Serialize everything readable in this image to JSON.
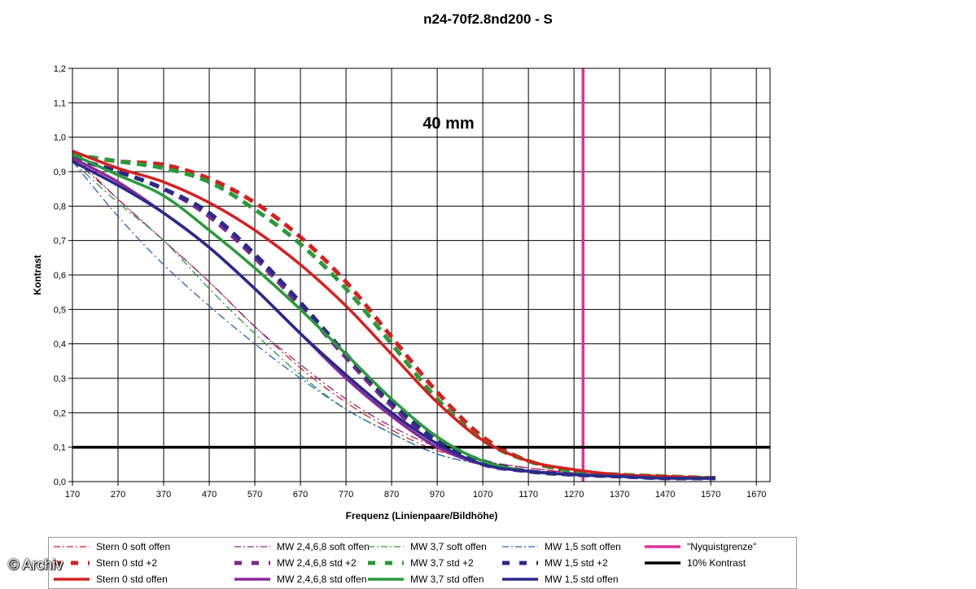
{
  "chart_data": {
    "type": "line",
    "title": "n24-70f2.8nd200 - S",
    "annotation": "40 mm",
    "xlabel": "Frequenz (Linienpaare/Bildhöhe)",
    "ylabel": "Kontrast",
    "xlim": [
      170,
      1700
    ],
    "ylim": [
      0,
      1.2
    ],
    "x_ticks": [
      "170",
      "270",
      "370",
      "470",
      "570",
      "670",
      "770",
      "870",
      "970",
      "1070",
      "1170",
      "1270",
      "1370",
      "1470",
      "1570",
      "1670"
    ],
    "y_ticks": [
      "0,0",
      "0,1",
      "0,2",
      "0,3",
      "0,4",
      "0,5",
      "0,6",
      "0,7",
      "0,8",
      "0,9",
      "1,0",
      "1,1",
      "1,2"
    ],
    "grid": true,
    "legend_position": "bottom",
    "series": [
      {
        "name": "Stern 0 soft offen",
        "color": "#d42020",
        "style": "dashdot",
        "width": "thin",
        "x": [
          170,
          270,
          370,
          470,
          570,
          670,
          770,
          870,
          970,
          1070,
          1170,
          1270,
          1370,
          1470,
          1580
        ],
        "y": [
          0.95,
          0.82,
          0.7,
          0.58,
          0.45,
          0.33,
          0.23,
          0.15,
          0.09,
          0.06,
          0.04,
          0.025,
          0.018,
          0.012,
          0.01
        ]
      },
      {
        "name": "MW 2,4,6,8 soft offen",
        "color": "#8a2a8a",
        "style": "dashdot",
        "width": "thin",
        "x": [
          170,
          270,
          370,
          470,
          570,
          670,
          770,
          870,
          970,
          1070,
          1170,
          1270,
          1370,
          1470,
          1580
        ],
        "y": [
          0.94,
          0.82,
          0.7,
          0.58,
          0.45,
          0.34,
          0.24,
          0.16,
          0.1,
          0.06,
          0.04,
          0.025,
          0.018,
          0.012,
          0.01
        ]
      },
      {
        "name": "MW 3,7 soft offen",
        "color": "#2a9a3a",
        "style": "dashdot",
        "width": "thin",
        "x": [
          170,
          270,
          370,
          470,
          570,
          670,
          770,
          870,
          970,
          1070,
          1170,
          1270,
          1370,
          1470,
          1580
        ],
        "y": [
          0.93,
          0.81,
          0.7,
          0.56,
          0.43,
          0.31,
          0.21,
          0.14,
          0.08,
          0.05,
          0.03,
          0.02,
          0.015,
          0.01,
          0.01
        ]
      },
      {
        "name": "MW 1,5 soft offen",
        "color": "#2a60c0",
        "style": "dashdot",
        "width": "thin",
        "x": [
          170,
          270,
          370,
          470,
          570,
          670,
          770,
          870,
          970,
          1070,
          1170,
          1270,
          1370,
          1470,
          1580
        ],
        "y": [
          0.93,
          0.77,
          0.63,
          0.51,
          0.4,
          0.3,
          0.21,
          0.14,
          0.08,
          0.05,
          0.03,
          0.02,
          0.015,
          0.01,
          0.01
        ]
      },
      {
        "name": "\"Nyquistgrenze\"",
        "color": "#e0309a",
        "style": "solid",
        "width": "thick",
        "x": [
          1290,
          1290
        ],
        "y": [
          0,
          1.2
        ]
      },
      {
        "name": "Stern 0 std +2",
        "color": "#d42020",
        "style": "dash",
        "width": "thick",
        "x": [
          170,
          270,
          370,
          470,
          570,
          670,
          770,
          870,
          970,
          1070,
          1170,
          1270,
          1370,
          1470,
          1580
        ],
        "y": [
          0.95,
          0.93,
          0.92,
          0.88,
          0.81,
          0.71,
          0.58,
          0.42,
          0.26,
          0.13,
          0.06,
          0.03,
          0.02,
          0.015,
          0.01
        ]
      },
      {
        "name": "MW 2,4,6,8 std +2",
        "color": "#7a2a8a",
        "style": "dash",
        "width": "thick",
        "x": [
          170,
          270,
          370,
          470,
          570,
          670,
          770,
          870,
          970,
          1070,
          1170,
          1270,
          1370,
          1470,
          1580
        ],
        "y": [
          0.94,
          0.9,
          0.85,
          0.77,
          0.65,
          0.51,
          0.36,
          0.22,
          0.11,
          0.05,
          0.03,
          0.02,
          0.015,
          0.01,
          0.01
        ]
      },
      {
        "name": "MW 3,7 std +2",
        "color": "#2a9a3a",
        "style": "dash",
        "width": "thick",
        "x": [
          170,
          270,
          370,
          470,
          570,
          670,
          770,
          870,
          970,
          1070,
          1170,
          1270,
          1370,
          1470,
          1580
        ],
        "y": [
          0.95,
          0.93,
          0.91,
          0.87,
          0.79,
          0.69,
          0.56,
          0.4,
          0.24,
          0.12,
          0.06,
          0.03,
          0.02,
          0.015,
          0.01
        ]
      },
      {
        "name": "MW 1,5 std +2",
        "color": "#2a2a8a",
        "style": "dash",
        "width": "thick",
        "x": [
          170,
          270,
          370,
          470,
          570,
          670,
          770,
          870,
          970,
          1070,
          1170,
          1270,
          1370,
          1470,
          1580
        ],
        "y": [
          0.94,
          0.9,
          0.85,
          0.78,
          0.66,
          0.52,
          0.37,
          0.23,
          0.12,
          0.06,
          0.03,
          0.02,
          0.015,
          0.01,
          0.01
        ]
      },
      {
        "name": "10% Kontrast",
        "color": "#000000",
        "style": "solid",
        "width": "thick",
        "x": [
          170,
          1700
        ],
        "y": [
          0.1,
          0.1
        ]
      },
      {
        "name": "Stern 0 std offen",
        "color": "#d42020",
        "style": "solid",
        "width": "thick",
        "x": [
          170,
          270,
          370,
          470,
          570,
          670,
          770,
          870,
          970,
          1070,
          1170,
          1270,
          1370,
          1470,
          1580
        ],
        "y": [
          0.96,
          0.91,
          0.87,
          0.81,
          0.73,
          0.63,
          0.51,
          0.37,
          0.23,
          0.12,
          0.06,
          0.035,
          0.02,
          0.015,
          0.01
        ]
      },
      {
        "name": "MW 2,4,6,8 std offen",
        "color": "#8a2a9a",
        "style": "solid",
        "width": "thick",
        "x": [
          170,
          270,
          370,
          470,
          570,
          670,
          770,
          870,
          970,
          1070,
          1170,
          1270,
          1370,
          1470,
          1580
        ],
        "y": [
          0.94,
          0.87,
          0.78,
          0.68,
          0.56,
          0.43,
          0.3,
          0.19,
          0.1,
          0.05,
          0.03,
          0.02,
          0.015,
          0.01,
          0.01
        ]
      },
      {
        "name": "MW 3,7 std offen",
        "color": "#2a9a3a",
        "style": "solid",
        "width": "thick",
        "x": [
          170,
          270,
          370,
          470,
          570,
          670,
          770,
          870,
          970,
          1070,
          1170,
          1270,
          1370,
          1470,
          1580
        ],
        "y": [
          0.95,
          0.89,
          0.83,
          0.73,
          0.62,
          0.5,
          0.37,
          0.24,
          0.13,
          0.06,
          0.03,
          0.02,
          0.015,
          0.01,
          0.01
        ]
      },
      {
        "name": "MW 1,5 std offen",
        "color": "#2a2a8a",
        "style": "solid",
        "width": "thick",
        "x": [
          170,
          270,
          370,
          470,
          570,
          670,
          770,
          870,
          970,
          1070,
          1170,
          1270,
          1370,
          1470,
          1580
        ],
        "y": [
          0.93,
          0.86,
          0.78,
          0.68,
          0.56,
          0.43,
          0.31,
          0.2,
          0.11,
          0.05,
          0.03,
          0.02,
          0.015,
          0.01,
          0.01
        ]
      }
    ]
  },
  "watermark": "© Archiv"
}
